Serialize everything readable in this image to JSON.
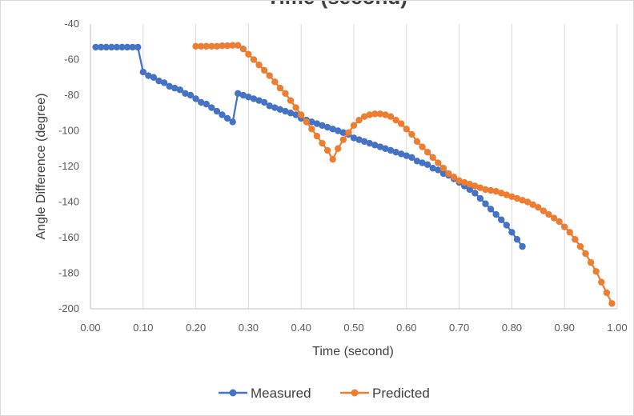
{
  "chart_data": {
    "type": "line",
    "title": "Time (second)",
    "xlabel": "Time (second)",
    "ylabel": "Angle Difference (degree)",
    "xlim": [
      0,
      1
    ],
    "ylim": [
      -200,
      -40
    ],
    "x_ticks": [
      "0.00",
      "0.10",
      "0.20",
      "0.30",
      "0.40",
      "0.50",
      "0.60",
      "0.70",
      "0.80",
      "0.90",
      "1.00"
    ],
    "y_ticks": [
      "-40",
      "-60",
      "-80",
      "-100",
      "-120",
      "-140",
      "-160",
      "-180",
      "-200"
    ],
    "grid": "vertical",
    "legend_position": "bottom",
    "series": [
      {
        "name": "Measured",
        "color": "#4472c4",
        "points": [
          [
            0.01,
            -53
          ],
          [
            0.02,
            -53
          ],
          [
            0.03,
            -53
          ],
          [
            0.04,
            -53
          ],
          [
            0.05,
            -53
          ],
          [
            0.06,
            -53
          ],
          [
            0.07,
            -53
          ],
          [
            0.08,
            -53
          ],
          [
            0.09,
            -53
          ],
          [
            0.1,
            -67
          ],
          [
            0.11,
            -69
          ],
          [
            0.12,
            -70
          ],
          [
            0.13,
            -72
          ],
          [
            0.14,
            -73
          ],
          [
            0.15,
            -75
          ],
          [
            0.16,
            -76
          ],
          [
            0.17,
            -77
          ],
          [
            0.18,
            -79
          ],
          [
            0.19,
            -80
          ],
          [
            0.2,
            -82
          ],
          [
            0.21,
            -84
          ],
          [
            0.22,
            -85
          ],
          [
            0.23,
            -87
          ],
          [
            0.24,
            -89
          ],
          [
            0.25,
            -91
          ],
          [
            0.26,
            -93
          ],
          [
            0.27,
            -95
          ],
          [
            0.28,
            -79
          ],
          [
            0.29,
            -80
          ],
          [
            0.3,
            -81
          ],
          [
            0.31,
            -82
          ],
          [
            0.32,
            -83
          ],
          [
            0.33,
            -84
          ],
          [
            0.34,
            -86
          ],
          [
            0.35,
            -87
          ],
          [
            0.36,
            -88
          ],
          [
            0.37,
            -89
          ],
          [
            0.38,
            -90
          ],
          [
            0.39,
            -91
          ],
          [
            0.4,
            -93
          ],
          [
            0.41,
            -94
          ],
          [
            0.42,
            -95
          ],
          [
            0.43,
            -96
          ],
          [
            0.44,
            -97
          ],
          [
            0.45,
            -98
          ],
          [
            0.46,
            -99
          ],
          [
            0.47,
            -100
          ],
          [
            0.48,
            -101
          ],
          [
            0.49,
            -102
          ],
          [
            0.5,
            -104
          ],
          [
            0.51,
            -105
          ],
          [
            0.52,
            -106
          ],
          [
            0.53,
            -107
          ],
          [
            0.54,
            -108
          ],
          [
            0.55,
            -109
          ],
          [
            0.56,
            -110
          ],
          [
            0.57,
            -111
          ],
          [
            0.58,
            -112
          ],
          [
            0.59,
            -113
          ],
          [
            0.6,
            -114
          ],
          [
            0.61,
            -115
          ],
          [
            0.62,
            -117
          ],
          [
            0.63,
            -118
          ],
          [
            0.64,
            -119
          ],
          [
            0.65,
            -121
          ],
          [
            0.66,
            -122
          ],
          [
            0.67,
            -124
          ],
          [
            0.68,
            -125
          ],
          [
            0.69,
            -127
          ],
          [
            0.7,
            -129
          ],
          [
            0.71,
            -131
          ],
          [
            0.72,
            -133
          ],
          [
            0.73,
            -135
          ],
          [
            0.74,
            -138
          ],
          [
            0.75,
            -141
          ],
          [
            0.76,
            -144
          ],
          [
            0.77,
            -147
          ],
          [
            0.78,
            -150
          ],
          [
            0.79,
            -153
          ],
          [
            0.8,
            -157
          ],
          [
            0.81,
            -161
          ],
          [
            0.82,
            -165
          ]
        ]
      },
      {
        "name": "Predicted",
        "color": "#ed7d31",
        "points": [
          [
            0.2,
            -52.5
          ],
          [
            0.21,
            -52.5
          ],
          [
            0.22,
            -52.5
          ],
          [
            0.23,
            -52.5
          ],
          [
            0.24,
            -52.5
          ],
          [
            0.25,
            -52.2
          ],
          [
            0.26,
            -52.2
          ],
          [
            0.27,
            -52
          ],
          [
            0.28,
            -52
          ],
          [
            0.29,
            -54
          ],
          [
            0.3,
            -57
          ],
          [
            0.31,
            -60
          ],
          [
            0.32,
            -63
          ],
          [
            0.33,
            -66
          ],
          [
            0.34,
            -69
          ],
          [
            0.35,
            -72.5
          ],
          [
            0.36,
            -76
          ],
          [
            0.37,
            -79
          ],
          [
            0.38,
            -83
          ],
          [
            0.39,
            -87
          ],
          [
            0.4,
            -91
          ],
          [
            0.41,
            -95
          ],
          [
            0.42,
            -99
          ],
          [
            0.43,
            -103
          ],
          [
            0.44,
            -107
          ],
          [
            0.45,
            -111
          ],
          [
            0.46,
            -116
          ],
          [
            0.47,
            -110
          ],
          [
            0.48,
            -105
          ],
          [
            0.49,
            -101
          ],
          [
            0.5,
            -97
          ],
          [
            0.51,
            -94
          ],
          [
            0.52,
            -92
          ],
          [
            0.53,
            -91
          ],
          [
            0.54,
            -90.5
          ],
          [
            0.55,
            -90.5
          ],
          [
            0.56,
            -91
          ],
          [
            0.57,
            -92
          ],
          [
            0.58,
            -94
          ],
          [
            0.59,
            -96
          ],
          [
            0.6,
            -99
          ],
          [
            0.61,
            -102
          ],
          [
            0.62,
            -106
          ],
          [
            0.63,
            -109
          ],
          [
            0.64,
            -112
          ],
          [
            0.65,
            -115
          ],
          [
            0.66,
            -118
          ],
          [
            0.67,
            -121
          ],
          [
            0.68,
            -124
          ],
          [
            0.69,
            -126
          ],
          [
            0.7,
            -128
          ],
          [
            0.71,
            -129
          ],
          [
            0.72,
            -130
          ],
          [
            0.73,
            -131
          ],
          [
            0.74,
            -132
          ],
          [
            0.75,
            -133
          ],
          [
            0.76,
            -133.5
          ],
          [
            0.77,
            -134
          ],
          [
            0.78,
            -135
          ],
          [
            0.79,
            -136
          ],
          [
            0.8,
            -137
          ],
          [
            0.81,
            -138
          ],
          [
            0.82,
            -139
          ],
          [
            0.83,
            -140
          ],
          [
            0.84,
            -141.5
          ],
          [
            0.85,
            -143
          ],
          [
            0.86,
            -145
          ],
          [
            0.87,
            -147
          ],
          [
            0.88,
            -149
          ],
          [
            0.89,
            -151
          ],
          [
            0.9,
            -154
          ],
          [
            0.91,
            -157
          ],
          [
            0.92,
            -161
          ],
          [
            0.93,
            -165
          ],
          [
            0.94,
            -169
          ],
          [
            0.95,
            -174
          ],
          [
            0.96,
            -179
          ],
          [
            0.97,
            -185
          ],
          [
            0.98,
            -191
          ],
          [
            0.99,
            -197
          ]
        ]
      }
    ]
  }
}
